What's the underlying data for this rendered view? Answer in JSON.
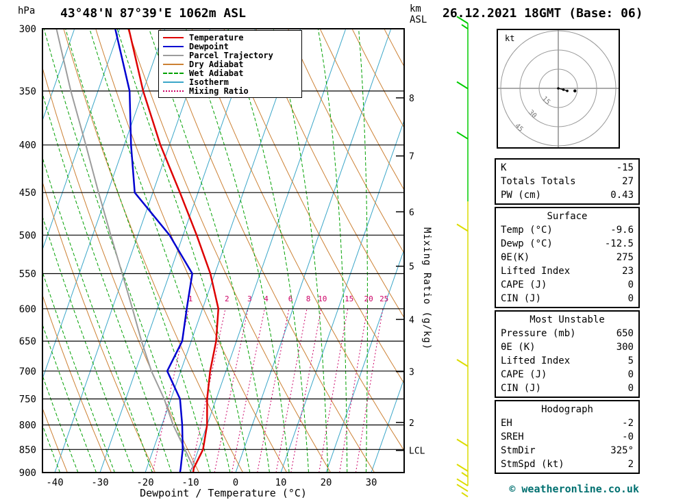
{
  "header": {
    "station": "43°48'N 87°39'E 1062m ASL",
    "datetime": "26.12.2021 18GMT (Base: 06)"
  },
  "axes": {
    "pressure_unit": "hPa",
    "pressure_ticks": [
      300,
      350,
      400,
      450,
      500,
      550,
      600,
      650,
      700,
      750,
      800,
      850,
      900
    ],
    "temp_axis_label": "Dewpoint / Temperature (°C)",
    "temp_ticks": [
      -40,
      -30,
      -20,
      -10,
      0,
      10,
      20,
      30
    ],
    "km_line1": "km",
    "km_line2": "ASL",
    "km_ticks": [
      {
        "label": "8",
        "hpa": 356
      },
      {
        "label": "7",
        "hpa": 411
      },
      {
        "label": "6",
        "hpa": 472
      },
      {
        "label": "5",
        "hpa": 540
      },
      {
        "label": "4",
        "hpa": 616
      },
      {
        "label": "3",
        "hpa": 701
      },
      {
        "label": "2",
        "hpa": 795
      }
    ],
    "lcl": {
      "label": "LCL",
      "hpa": 852
    },
    "mixing_ratio_axis_label": "Mixing Ratio (g/kg)"
  },
  "legend": {
    "items": [
      {
        "label": "Temperature",
        "color": "#dd0000",
        "dash": "solid"
      },
      {
        "label": "Dewpoint",
        "color": "#0000d0",
        "dash": "solid"
      },
      {
        "label": "Parcel Trajectory",
        "color": "#9c9c9c",
        "dash": "solid"
      },
      {
        "label": "Dry Adiabat",
        "color": "#cc8033",
        "dash": "solid"
      },
      {
        "label": "Wet Adiabat",
        "color": "#00a000",
        "dash": "dashed"
      },
      {
        "label": "Isotherm",
        "color": "#3aa6c8",
        "dash": "solid"
      },
      {
        "label": "Mixing Ratio",
        "color": "#cc0066",
        "dash": "dotted"
      }
    ]
  },
  "chart_data": {
    "type": "skewt_logp_sounding",
    "title": "43°48'N 87°39'E 1062m ASL",
    "xlabel": "Dewpoint / Temperature (°C)",
    "pressure_axis": {
      "unit": "hPa",
      "min": 300,
      "max": 900,
      "scale": "log"
    },
    "temp_axis": {
      "unit": "°C",
      "min": -40,
      "max": 37
    },
    "series": {
      "temperature": {
        "color": "#dd0000",
        "points": [
          [
            900,
            -9.4
          ],
          [
            890,
            -9.6
          ],
          [
            850,
            -9.0
          ],
          [
            800,
            -10.0
          ],
          [
            750,
            -12.0
          ],
          [
            700,
            -13.5
          ],
          [
            650,
            -14.5
          ],
          [
            600,
            -16.5
          ],
          [
            550,
            -21.0
          ],
          [
            500,
            -27.0
          ],
          [
            450,
            -34.0
          ],
          [
            400,
            -42.0
          ],
          [
            350,
            -50.0
          ],
          [
            300,
            -58.0
          ]
        ]
      },
      "dewpoint": {
        "color": "#0000d0",
        "points": [
          [
            900,
            -12.3
          ],
          [
            890,
            -12.5
          ],
          [
            850,
            -13.5
          ],
          [
            800,
            -15.5
          ],
          [
            750,
            -18.0
          ],
          [
            700,
            -23.0
          ],
          [
            650,
            -22.0
          ],
          [
            600,
            -23.5
          ],
          [
            550,
            -25.0
          ],
          [
            500,
            -33.0
          ],
          [
            450,
            -44.0
          ],
          [
            400,
            -48.5
          ],
          [
            350,
            -53.0
          ],
          [
            300,
            -61.0
          ]
        ]
      },
      "parcel": {
        "color": "#9c9c9c",
        "points": [
          [
            900,
            -9.4
          ],
          [
            890,
            -9.6
          ],
          [
            850,
            -13.0
          ],
          [
            800,
            -17.5
          ],
          [
            750,
            -21.5
          ],
          [
            700,
            -26.5
          ],
          [
            650,
            -31.0
          ],
          [
            600,
            -35.5
          ],
          [
            550,
            -40.5
          ],
          [
            500,
            -46.0
          ],
          [
            450,
            -52.0
          ],
          [
            400,
            -58.5
          ],
          [
            350,
            -66.0
          ],
          [
            300,
            -74.0
          ]
        ]
      }
    },
    "background": {
      "isotherms": {
        "color": "#3aa6c8",
        "start": -70,
        "end": 40,
        "step": 10
      },
      "dry_adiabats": {
        "color": "#cc8033",
        "theta_start": -30,
        "theta_end": 110,
        "step": 10
      },
      "wet_adiabats": {
        "color": "#00a000",
        "t1000_start": -36,
        "t1000_end": 32,
        "step": 4
      },
      "mixing_ratio": {
        "color": "#cc0066",
        "values": [
          1,
          2,
          3,
          4,
          6,
          8,
          10,
          15,
          20,
          25
        ],
        "label_hpa": 589,
        "top_hpa": 596
      }
    }
  },
  "wind_column": {
    "x": 683,
    "staff_segments": [
      {
        "hpa1": 296,
        "hpa2": 460,
        "color": "#00cc00"
      },
      {
        "hpa1": 460,
        "hpa2": 930,
        "color": "#dcdc00"
      }
    ],
    "barbs": [
      {
        "hpa": 296,
        "color": "#00cc00",
        "ticks": [
          "full",
          "half"
        ]
      },
      {
        "hpa": 348,
        "color": "#00cc00",
        "ticks": [
          "full"
        ]
      },
      {
        "hpa": 394,
        "color": "#00cc00",
        "ticks": [
          "full"
        ]
      },
      {
        "hpa": 495,
        "color": "#dcdc00",
        "ticks": [
          "full"
        ]
      },
      {
        "hpa": 692,
        "color": "#dcdc00",
        "ticks": [
          "full"
        ]
      },
      {
        "hpa": 843,
        "color": "#dcdc00",
        "ticks": [
          "full"
        ]
      },
      {
        "hpa": 897,
        "color": "#dcdc00",
        "ticks": [
          "full",
          "half"
        ]
      },
      {
        "hpa": 930,
        "color": "#dcdc00",
        "ticks": [
          "full",
          "full",
          "half"
        ]
      }
    ]
  },
  "hodograph": {
    "unit_label": "kt",
    "rings_kt": [
      15,
      30,
      45
    ],
    "trace": [
      [
        0,
        0
      ],
      [
        4,
        -1
      ],
      [
        7,
        -2
      ]
    ],
    "extra_dots": [
      [
        13,
        -2
      ]
    ]
  },
  "tables": [
    {
      "rows": [
        [
          "K",
          "-15"
        ],
        [
          "Totals Totals",
          "27"
        ],
        [
          "PW (cm)",
          "0.43"
        ]
      ]
    },
    {
      "title": "Surface",
      "rows": [
        [
          "Temp (°C)",
          "-9.6"
        ],
        [
          "Dewp (°C)",
          "-12.5"
        ],
        [
          "θE(K)",
          "275"
        ],
        [
          "Lifted Index",
          "23"
        ],
        [
          "CAPE (J)",
          "0"
        ],
        [
          "CIN (J)",
          "0"
        ]
      ]
    },
    {
      "title": "Most Unstable",
      "rows": [
        [
          "Pressure (mb)",
          "650"
        ],
        [
          "θE (K)",
          "300"
        ],
        [
          "Lifted Index",
          "5"
        ],
        [
          "CAPE (J)",
          "0"
        ],
        [
          "CIN (J)",
          "0"
        ]
      ]
    },
    {
      "title": "Hodograph",
      "rows": [
        [
          "EH",
          "-2"
        ],
        [
          "SREH",
          "-0"
        ],
        [
          "StmDir",
          "325°"
        ],
        [
          "StmSpd (kt)",
          "2"
        ]
      ]
    }
  ],
  "footer": {
    "copyright": "© weatheronline.co.uk"
  }
}
